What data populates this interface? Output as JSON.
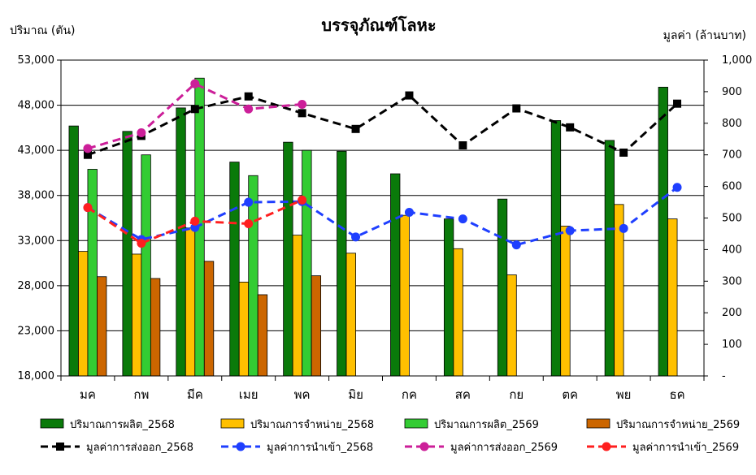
{
  "chart_data": {
    "type": "bar",
    "title": "บรรจุภัณฑ์โลหะ",
    "ylabel_left": "ปริมาณ (ตัน)",
    "ylabel_right": "มูลค่า (ล้านบาท)",
    "categories": [
      "มค",
      "กพ",
      "มีค",
      "เมย",
      "พค",
      "มิย",
      "กค",
      "สค",
      "กย",
      "ตค",
      "พย",
      "ธค"
    ],
    "y_left": {
      "min": 18000,
      "max": 53000,
      "ticks": [
        "18,000",
        "23,000",
        "28,000",
        "33,000",
        "38,000",
        "43,000",
        "48,000",
        "53,000"
      ]
    },
    "y_right": {
      "min": 0,
      "max": 1000,
      "ticks": [
        "-",
        "100",
        "200",
        "300",
        "400",
        "500",
        "600",
        "700",
        "800",
        "900",
        "1,000"
      ]
    },
    "grid": true,
    "legend_position": "bottom",
    "bar_series": [
      {
        "name": "ปริมาณการผลิต_2568",
        "color": "#0a7a0a",
        "values": [
          45700,
          45100,
          47700,
          41700,
          43900,
          42900,
          40400,
          35400,
          37600,
          46300,
          44100,
          50000
        ]
      },
      {
        "name": "ปริมาณการจำหน่าย_2568",
        "color": "#ffc000",
        "values": [
          31800,
          31500,
          34400,
          28400,
          33600,
          31600,
          35800,
          32100,
          29200,
          34600,
          37000,
          35400
        ]
      },
      {
        "name": "ปริมาณการผลิต_2569",
        "color": "#33cc33",
        "values": [
          40900,
          42500,
          51000,
          40200,
          43000,
          null,
          null,
          null,
          null,
          null,
          null,
          null
        ]
      },
      {
        "name": "ปริมาณการจำหน่าย_2569",
        "color": "#cc6600",
        "values": [
          29000,
          28800,
          30700,
          27000,
          29100,
          null,
          null,
          null,
          null,
          null,
          null,
          null
        ]
      }
    ],
    "line_series": [
      {
        "name": "มูลค่าการส่งออก_2568",
        "color": "#000000",
        "marker": "square",
        "values": [
          700,
          760,
          845,
          885,
          832,
          782,
          888,
          730,
          847,
          787,
          707,
          862
        ]
      },
      {
        "name": "มูลค่าการนำเข้า_2568",
        "color": "#1f3fff",
        "marker": "circle",
        "values": [
          533,
          432,
          470,
          550,
          552,
          440,
          518,
          497,
          415,
          460,
          467,
          597
        ]
      },
      {
        "name": "มูลค่าการส่งออก_2569",
        "color": "#cc1f99",
        "marker": "circle",
        "values": [
          720,
          770,
          925,
          845,
          860,
          null,
          null,
          null,
          null,
          null,
          null,
          null
        ]
      },
      {
        "name": "มูลค่าการนำเข้า_2569",
        "color": "#ff1f1f",
        "marker": "circle",
        "values": [
          533,
          420,
          490,
          482,
          557,
          null,
          null,
          null,
          null,
          null,
          null,
          null
        ]
      }
    ]
  }
}
